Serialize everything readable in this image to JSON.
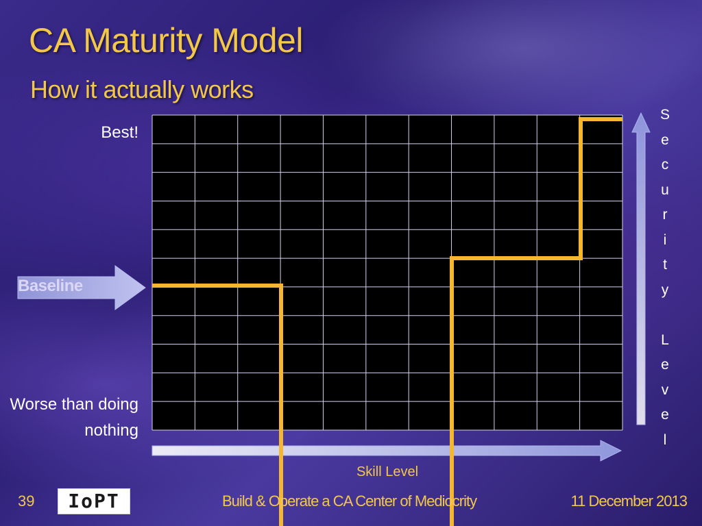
{
  "slide": {
    "title": "CA Maturity Model",
    "subtitle": "How it actually works"
  },
  "labels": {
    "best": "Best!",
    "worse": "Worse than doing nothing",
    "baseline": "Baseline",
    "y_axis": "Security Level",
    "x_axis": "Skill Level"
  },
  "footer": {
    "slide_number": "39",
    "logo_text": "IoPT",
    "center_text": "Build & Operate a CA Center of Mediocrity",
    "date": "11 December 2013"
  },
  "colors": {
    "title": "#f3c84a",
    "maturity_line": "#f5b731",
    "grid_background": "#000000",
    "grid_lines": "#d8d2f2"
  },
  "grid": {
    "columns": 11,
    "rows": 11
  }
}
